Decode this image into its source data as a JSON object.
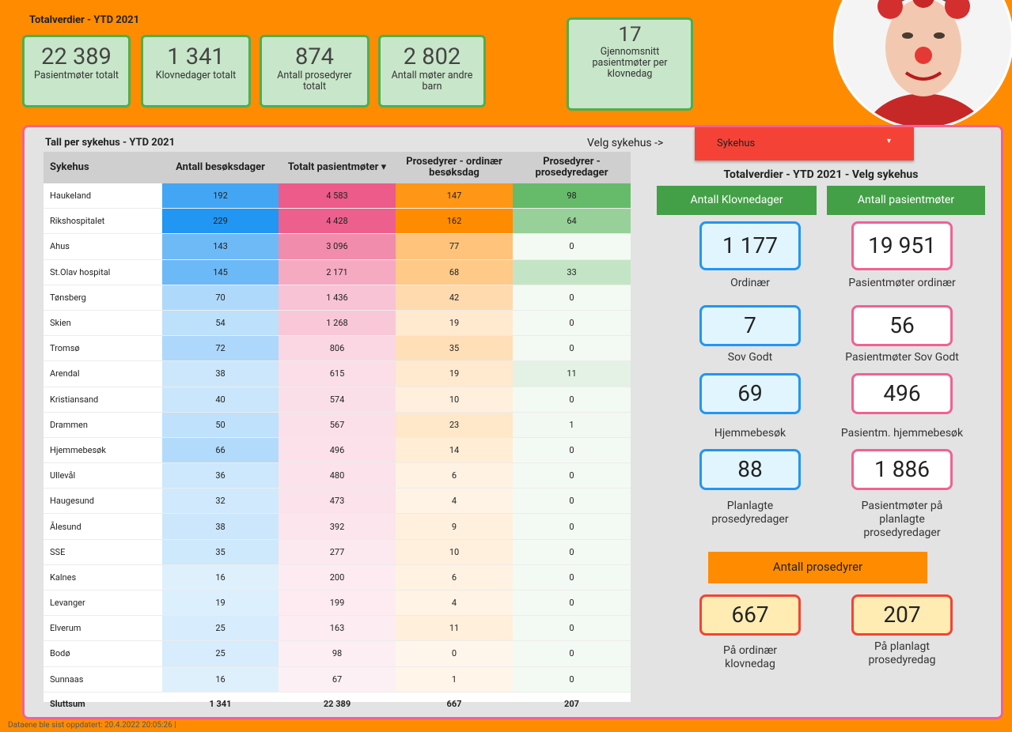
{
  "header": {
    "title": "Totalverdier - YTD 2021"
  },
  "kpis": [
    {
      "value": "22 389",
      "label": "Pasientmøter totalt"
    },
    {
      "value": "1 341",
      "label": "Klovnedager totalt"
    },
    {
      "value": 874,
      "label": "Antall prosedyrer totalt"
    },
    {
      "value": "2 802",
      "label": "Antall møter andre barn"
    },
    {
      "value": 17,
      "label": "Gjennomsnitt pasientmøter per klovnedag"
    }
  ],
  "table": {
    "title": "Tall per sykehus - YTD 2021",
    "columns": [
      "Sykehus",
      "Antall besøksdager",
      "Totalt pasientmøter ▾",
      "Prosedyrer - ordinær besøksdag",
      "Prosedyrer - prosedyredager"
    ],
    "heat_colors": [
      "#2196f3",
      "#ec5b8a",
      "#ff8c00",
      "#66bb6a"
    ],
    "rows": [
      [
        "Haukeland",
        192,
        "4 583",
        147,
        98
      ],
      [
        "Rikshospitalet",
        229,
        "4 428",
        162,
        64
      ],
      [
        "Ahus",
        143,
        "3 096",
        77,
        0
      ],
      [
        "St.Olav hospital",
        145,
        "2 171",
        68,
        33
      ],
      [
        "Tønsberg",
        70,
        "1 436",
        42,
        0
      ],
      [
        "Skien",
        54,
        "1 268",
        19,
        0
      ],
      [
        "Tromsø",
        72,
        806,
        35,
        0
      ],
      [
        "Arendal",
        38,
        615,
        19,
        11
      ],
      [
        "Kristiansand",
        40,
        574,
        10,
        0
      ],
      [
        "Drammen",
        50,
        567,
        23,
        1
      ],
      [
        "Hjemmebesøk",
        66,
        496,
        14,
        0
      ],
      [
        "Ullevål",
        36,
        480,
        6,
        0
      ],
      [
        "Haugesund",
        32,
        473,
        4,
        0
      ],
      [
        "Ålesund",
        38,
        392,
        9,
        0
      ],
      [
        "SSE",
        35,
        277,
        10,
        0
      ],
      [
        "Kalnes",
        16,
        200,
        6,
        0
      ],
      [
        "Levanger",
        19,
        199,
        4,
        0
      ],
      [
        "Elverum",
        25,
        163,
        11,
        0
      ],
      [
        "Bodø",
        25,
        98,
        0,
        0
      ],
      [
        "Sunnaas",
        16,
        67,
        1,
        0
      ]
    ],
    "total": [
      "Sluttsum",
      "1 341",
      "22 389",
      667,
      207
    ]
  },
  "selector": {
    "label": "Velg sykehus ->",
    "value": "Sykehus"
  },
  "side": {
    "title": "Totalverdier - YTD 2021 - Velg sykehus",
    "columns": [
      {
        "header": "Antall Klovnedager",
        "items": [
          {
            "value": "1 177",
            "label": "Ordinær"
          },
          {
            "value": 7,
            "label": "Sov Godt"
          },
          {
            "value": 69,
            "label": "Hjemmebesøk"
          },
          {
            "value": 88,
            "label": "Planlagte prosedyredager"
          }
        ]
      },
      {
        "header": "Antall pasientmøter",
        "items": [
          {
            "value": "19 951",
            "label": "Pasientmøter ordinær"
          },
          {
            "value": 56,
            "label": "Pasientmøter Sov Godt"
          },
          {
            "value": 496,
            "label": "Pasientm. hjemmebesøk"
          },
          {
            "value": "1 886",
            "label": "Pasientmøter på planlagte prosedyredager"
          }
        ]
      }
    ],
    "procedures": {
      "header": "Antall prosedyrer",
      "items": [
        {
          "value": 667,
          "label": "På ordinær klovnedag"
        },
        {
          "value": 207,
          "label": "På planlagt prosedyredag"
        }
      ]
    }
  },
  "footer": {
    "text": "Dataene ble sist oppdatert: 20.4.2022 20:05:26 |"
  }
}
